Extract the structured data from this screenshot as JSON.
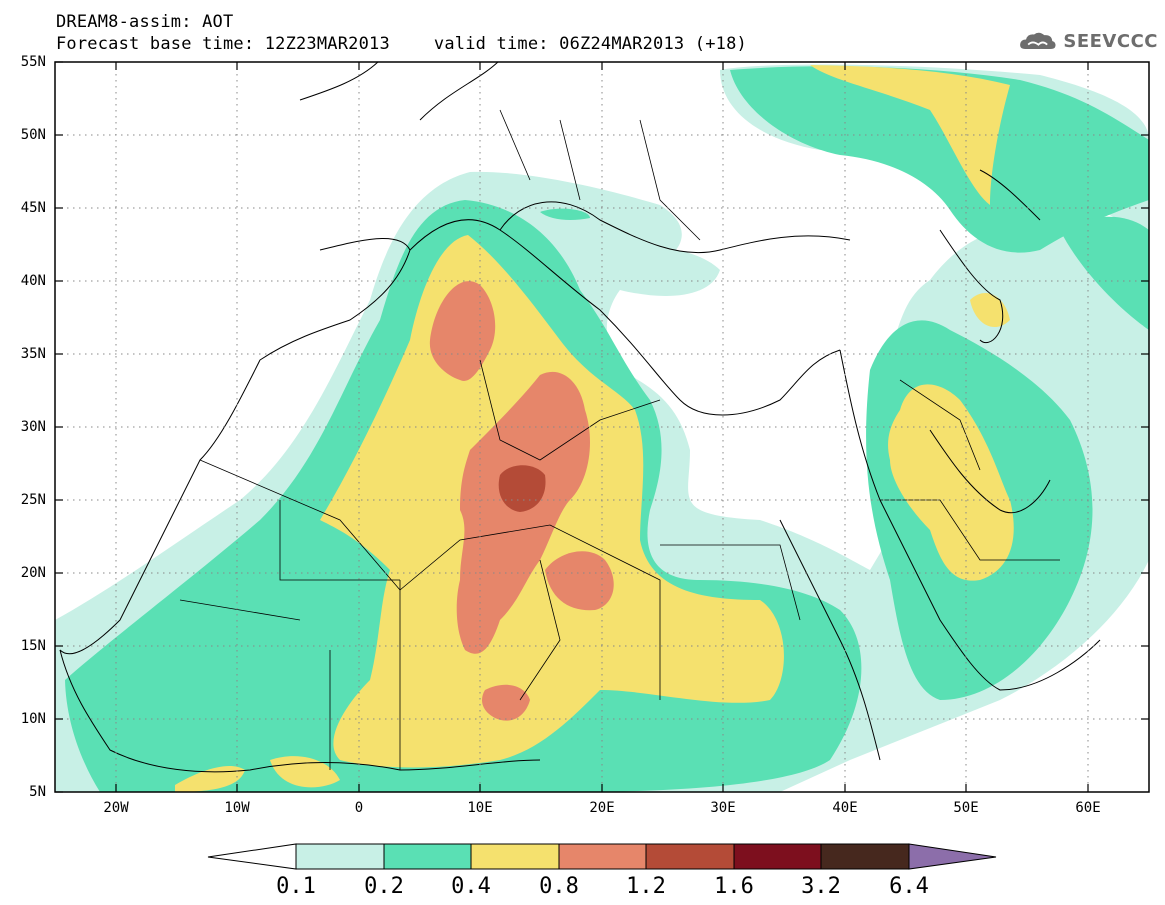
{
  "header": {
    "line1": "DREAM8-assim: AOT",
    "base_time": "Forecast base time: 12Z23MAR2013",
    "valid_time": "valid time: 06Z24MAR2013 (+18)",
    "logo_text": "SEEVCCC",
    "logo_icon": "cloud-icon"
  },
  "map": {
    "lat_labels": [
      "55N",
      "50N",
      "45N",
      "40N",
      "35N",
      "30N",
      "25N",
      "20N",
      "15N",
      "10N",
      "5N"
    ],
    "lon_labels": [
      "20W",
      "10W",
      "0",
      "10E",
      "20E",
      "30E",
      "40E",
      "50E",
      "60E"
    ],
    "extent": {
      "lon_min": -25,
      "lon_max": 65,
      "lat_min": 5,
      "lat_max": 55
    },
    "gridlines": "dotted"
  },
  "colorbar": {
    "labels": [
      "0.1",
      "0.2",
      "0.4",
      "0.8",
      "1.2",
      "1.6",
      "3.2",
      "6.4"
    ],
    "colors": [
      "#ffffff",
      "#c8f0e6",
      "#5ae0b4",
      "#f5e16e",
      "#e6866a",
      "#b44b37",
      "#7d0f1e",
      "#46281e",
      "#8c6eaa"
    ]
  }
}
